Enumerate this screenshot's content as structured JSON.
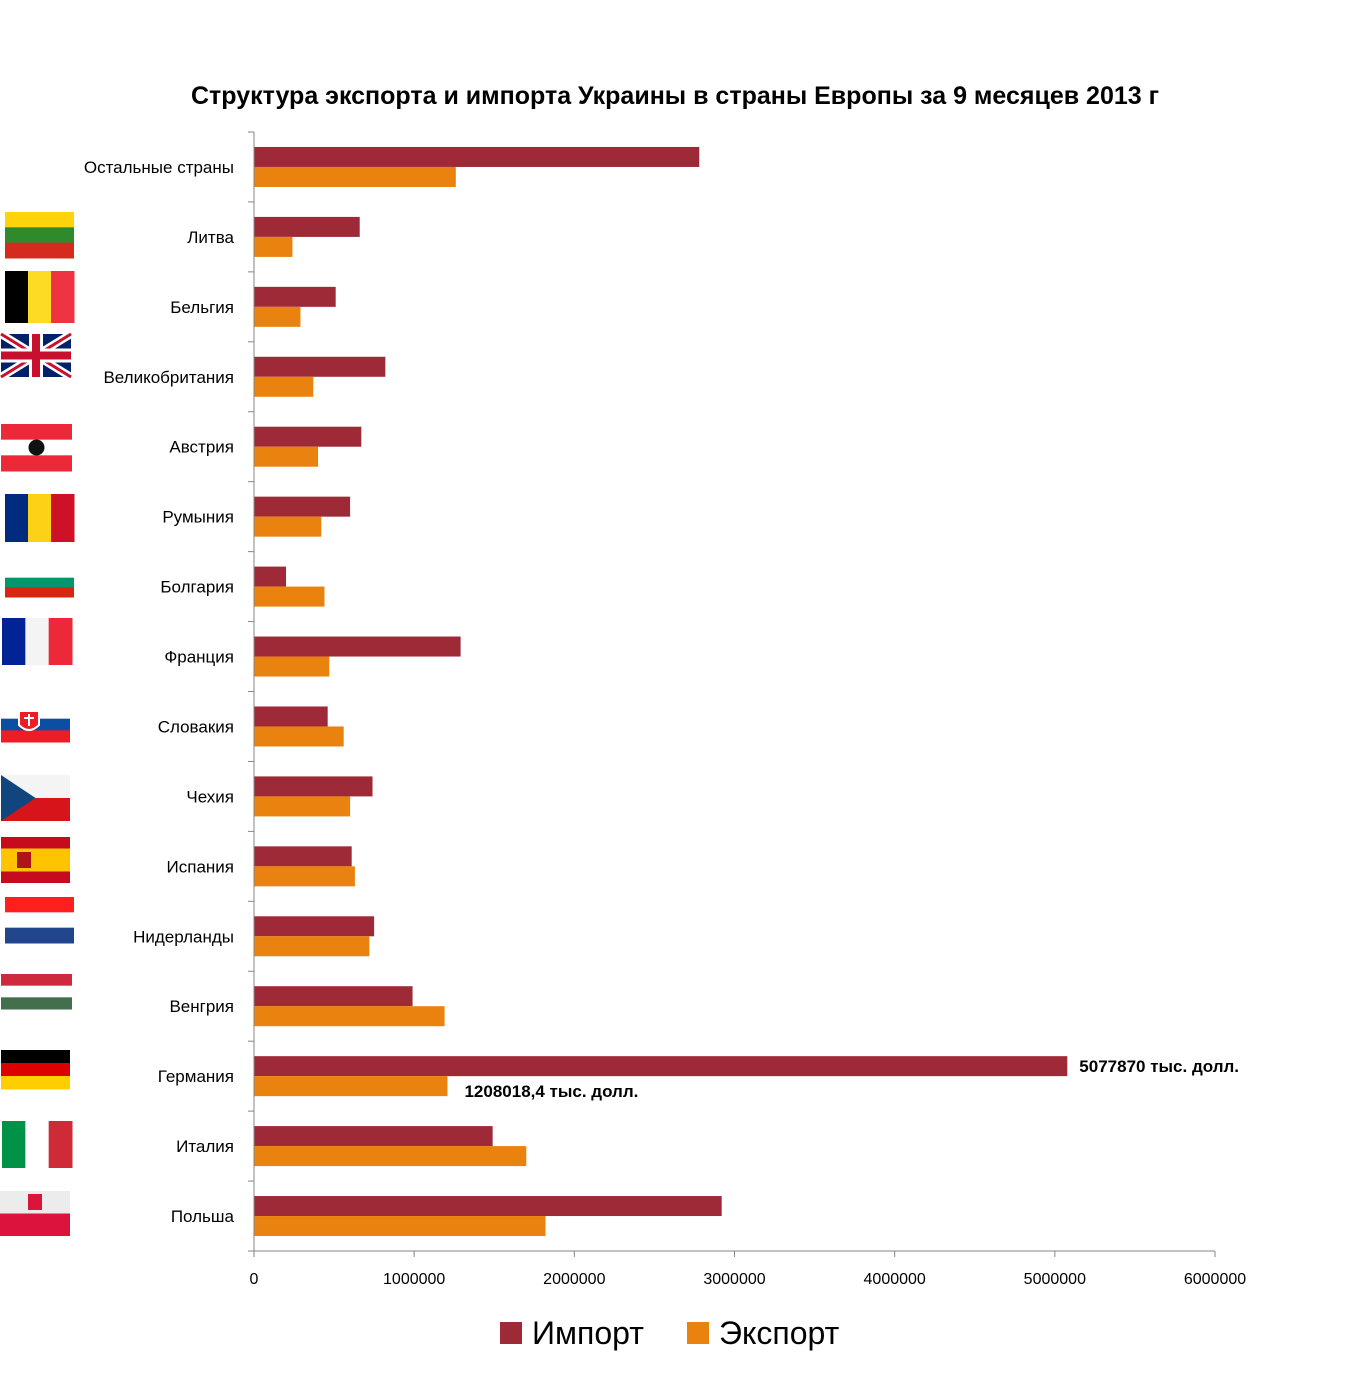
{
  "chart_data": {
    "type": "bar",
    "orientation": "horizontal",
    "title": "Структура экспорта и импорта Украины в страны Европы за 9 месяцев 2013 г",
    "categories": [
      "Остальные страны",
      "Литва",
      "Бельгия",
      "Великобритания",
      "Австрия",
      "Румыния",
      "Болгария",
      "Франция",
      "Словакия",
      "Чехия",
      "Испания",
      "Нидерланды",
      "Венгрия",
      "Германия",
      "Италия",
      "Польша"
    ],
    "series": [
      {
        "name": "Импорт",
        "color": "#9E2A37",
        "values": [
          2780000,
          660000,
          510000,
          820000,
          670000,
          600000,
          200000,
          1290000,
          460000,
          740000,
          610000,
          750000,
          990000,
          5077870,
          1490000,
          2920000
        ]
      },
      {
        "name": "Экспорт",
        "color": "#E9820F",
        "values": [
          1260000,
          240000,
          290000,
          370000,
          400000,
          420000,
          440000,
          470000,
          560000,
          600000,
          630000,
          720000,
          1190000,
          1208018.4,
          1700000,
          1820000
        ]
      }
    ],
    "xlim": [
      0,
      6000000
    ],
    "xticks": [
      "0",
      "1000000",
      "2000000",
      "3000000",
      "4000000",
      "5000000",
      "6000000"
    ],
    "grid": false,
    "legend_position": "bottom",
    "annotations": [
      {
        "category": "Германия",
        "series": "Импорт",
        "text": "5077870 тыс. долл."
      },
      {
        "category": "Германия",
        "series": "Экспорт",
        "text": "1208018,4 тыс. долл."
      }
    ],
    "flag_icons": [
      "",
      "lithuania-flag-icon",
      "belgium-flag-icon",
      "uk-flag-icon",
      "austria-flag-icon",
      "romania-flag-icon",
      "bulgaria-flag-icon",
      "france-flag-icon",
      "slovakia-flag-icon",
      "czech-flag-icon",
      "spain-flag-icon",
      "netherlands-flag-icon",
      "hungary-flag-icon",
      "germany-flag-icon",
      "italy-flag-icon",
      "poland-flag-icon"
    ]
  }
}
